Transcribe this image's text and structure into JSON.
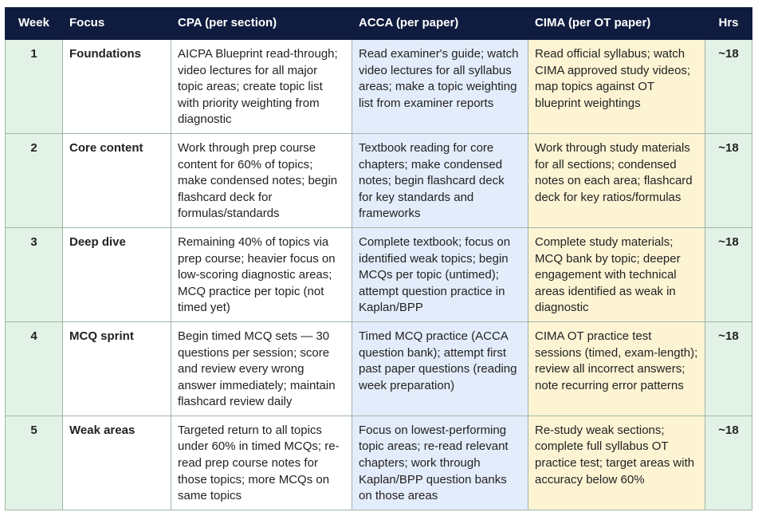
{
  "headers": {
    "week": "Week",
    "focus": "Focus",
    "cpa": "CPA (per section)",
    "acca": "ACCA (per paper)",
    "cima": "CIMA (per OT paper)",
    "hrs": "Hrs"
  },
  "rows": [
    {
      "week": "1",
      "focus": "Foundations",
      "cpa": "AICPA Blueprint read-through; video lectures for all major topic areas; create topic list with priority weighting from diagnostic",
      "acca": "Read examiner's guide; watch video lectures for all syllabus areas; make a topic weighting list from examiner reports",
      "cima": "Read official syllabus; watch CIMA approved study videos; map topics against OT blueprint weightings",
      "hrs": "~18"
    },
    {
      "week": "2",
      "focus": "Core content",
      "cpa": "Work through prep course content for 60% of topics; make condensed notes; begin flashcard deck for formulas/standards",
      "acca": "Textbook reading for core chapters; make condensed notes; begin flashcard deck for key standards and frameworks",
      "cima": "Work through study materials for all sections; condensed notes on each area; flashcard deck for key ratios/formulas",
      "hrs": "~18"
    },
    {
      "week": "3",
      "focus": "Deep dive",
      "cpa": "Remaining 40% of topics via prep course; heavier focus on low-scoring diagnostic areas; MCQ practice per topic (not timed yet)",
      "acca": "Complete textbook; focus on identified weak topics; begin MCQs per topic (untimed); attempt question practice in Kaplan/BPP",
      "cima": "Complete study materials; MCQ bank by topic; deeper engagement with technical areas identified as weak in diagnostic",
      "hrs": "~18"
    },
    {
      "week": "4",
      "focus": "MCQ sprint",
      "cpa": "Begin timed MCQ sets — 30 questions per session; score and review every wrong answer immediately; maintain flashcard review daily",
      "acca": "Timed MCQ practice (ACCA question bank); attempt first past paper questions (reading week preparation)",
      "cima": "CIMA OT practice test sessions (timed, exam-length); review all incorrect answers; note recurring error patterns",
      "hrs": "~18"
    },
    {
      "week": "5",
      "focus": "Weak areas",
      "cpa": "Targeted return to all topics under 60% in timed MCQs; re-read prep course notes for those topics; more MCQs on same topics",
      "acca": "Focus on lowest-performing topic areas; re-read relevant chapters; work through Kaplan/BPP question banks on those areas",
      "cima": "Re-study weak sections; complete full syllabus OT practice test; target areas with accuracy below 60%",
      "hrs": "~18"
    }
  ]
}
